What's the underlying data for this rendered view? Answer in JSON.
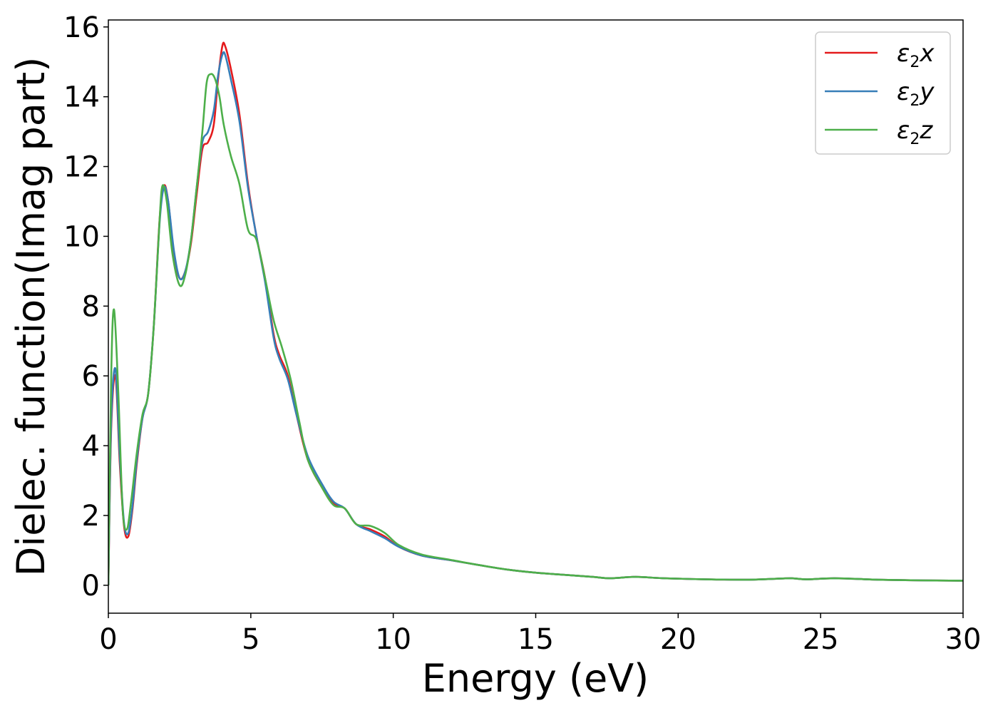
{
  "chart_data": {
    "type": "line",
    "title": "",
    "xlabel": "Energy (eV)",
    "ylabel": "Dielec. function(Imag part)",
    "xlim": [
      0,
      30
    ],
    "ylim": [
      -0.8,
      16.2
    ],
    "xticks": [
      0,
      5,
      10,
      15,
      20,
      25,
      30
    ],
    "yticks": [
      0,
      2,
      4,
      6,
      8,
      10,
      12,
      14,
      16
    ],
    "grid": false,
    "legend_position": "top-right",
    "series": [
      {
        "name": "ε2x",
        "legend": {
          "base": "ε",
          "sub": "2",
          "suffix": "x"
        },
        "color": "#e41a1c",
        "points": [
          [
            0,
            0
          ],
          [
            0.1,
            4.5
          ],
          [
            0.25,
            6.0
          ],
          [
            0.4,
            3.5
          ],
          [
            0.55,
            1.7
          ],
          [
            0.7,
            1.4
          ],
          [
            0.85,
            2.2
          ],
          [
            1.0,
            3.5
          ],
          [
            1.2,
            4.8
          ],
          [
            1.4,
            5.5
          ],
          [
            1.6,
            7.5
          ],
          [
            1.8,
            10.5
          ],
          [
            1.95,
            11.45
          ],
          [
            2.1,
            11.0
          ],
          [
            2.3,
            9.5
          ],
          [
            2.5,
            8.8
          ],
          [
            2.7,
            9.0
          ],
          [
            2.9,
            9.8
          ],
          [
            3.1,
            11.2
          ],
          [
            3.3,
            12.5
          ],
          [
            3.5,
            12.7
          ],
          [
            3.7,
            13.2
          ],
          [
            3.85,
            14.5
          ],
          [
            4.0,
            15.45
          ],
          [
            4.1,
            15.45
          ],
          [
            4.3,
            14.8
          ],
          [
            4.6,
            13.5
          ],
          [
            4.9,
            11.5
          ],
          [
            5.2,
            10.0
          ],
          [
            5.5,
            8.8
          ],
          [
            5.8,
            7.2
          ],
          [
            6.0,
            6.6
          ],
          [
            6.3,
            6.0
          ],
          [
            6.6,
            4.9
          ],
          [
            7.0,
            3.6
          ],
          [
            7.5,
            2.8
          ],
          [
            7.9,
            2.35
          ],
          [
            8.3,
            2.2
          ],
          [
            8.7,
            1.75
          ],
          [
            9.2,
            1.6
          ],
          [
            9.7,
            1.4
          ],
          [
            10.2,
            1.1
          ],
          [
            11.0,
            0.85
          ],
          [
            12.0,
            0.72
          ],
          [
            13.0,
            0.58
          ],
          [
            14.0,
            0.45
          ],
          [
            15.0,
            0.36
          ],
          [
            16.0,
            0.3
          ],
          [
            17.0,
            0.24
          ],
          [
            17.6,
            0.2
          ],
          [
            18.5,
            0.24
          ],
          [
            19.5,
            0.2
          ],
          [
            21.0,
            0.17
          ],
          [
            22.5,
            0.16
          ],
          [
            23.5,
            0.19
          ],
          [
            24.0,
            0.2
          ],
          [
            24.5,
            0.17
          ],
          [
            25.5,
            0.2
          ],
          [
            27.0,
            0.16
          ],
          [
            28.5,
            0.14
          ],
          [
            30.0,
            0.13
          ]
        ]
      },
      {
        "name": "ε2y",
        "legend": {
          "base": "ε",
          "sub": "2",
          "suffix": "y"
        },
        "color": "#377eb8",
        "points": [
          [
            0,
            0
          ],
          [
            0.1,
            4.7
          ],
          [
            0.25,
            6.2
          ],
          [
            0.4,
            3.7
          ],
          [
            0.55,
            1.8
          ],
          [
            0.7,
            1.5
          ],
          [
            0.85,
            2.3
          ],
          [
            1.0,
            3.6
          ],
          [
            1.2,
            4.8
          ],
          [
            1.4,
            5.5
          ],
          [
            1.6,
            7.5
          ],
          [
            1.8,
            10.4
          ],
          [
            1.95,
            11.4
          ],
          [
            2.1,
            11.0
          ],
          [
            2.3,
            9.6
          ],
          [
            2.5,
            8.8
          ],
          [
            2.7,
            9.0
          ],
          [
            2.9,
            9.9
          ],
          [
            3.1,
            11.4
          ],
          [
            3.3,
            12.7
          ],
          [
            3.5,
            13.0
          ],
          [
            3.7,
            13.6
          ],
          [
            3.85,
            14.6
          ],
          [
            4.0,
            15.2
          ],
          [
            4.1,
            15.2
          ],
          [
            4.3,
            14.5
          ],
          [
            4.6,
            13.3
          ],
          [
            4.9,
            11.4
          ],
          [
            5.2,
            10.0
          ],
          [
            5.5,
            8.7
          ],
          [
            5.8,
            7.1
          ],
          [
            6.0,
            6.5
          ],
          [
            6.3,
            5.9
          ],
          [
            6.6,
            4.9
          ],
          [
            7.0,
            3.7
          ],
          [
            7.5,
            2.9
          ],
          [
            7.9,
            2.4
          ],
          [
            8.3,
            2.2
          ],
          [
            8.7,
            1.75
          ],
          [
            9.2,
            1.55
          ],
          [
            9.7,
            1.35
          ],
          [
            10.2,
            1.1
          ],
          [
            11.0,
            0.85
          ],
          [
            12.0,
            0.72
          ],
          [
            13.0,
            0.58
          ],
          [
            14.0,
            0.45
          ],
          [
            15.0,
            0.36
          ],
          [
            16.0,
            0.3
          ],
          [
            17.0,
            0.24
          ],
          [
            17.6,
            0.2
          ],
          [
            18.5,
            0.24
          ],
          [
            19.5,
            0.2
          ],
          [
            21.0,
            0.17
          ],
          [
            22.5,
            0.16
          ],
          [
            23.5,
            0.19
          ],
          [
            24.0,
            0.2
          ],
          [
            24.5,
            0.17
          ],
          [
            25.5,
            0.2
          ],
          [
            27.0,
            0.16
          ],
          [
            28.5,
            0.14
          ],
          [
            30.0,
            0.13
          ]
        ]
      },
      {
        "name": "ε2z",
        "legend": {
          "base": "ε",
          "sub": "2",
          "suffix": "z"
        },
        "color": "#4daf4a",
        "points": [
          [
            0,
            0
          ],
          [
            0.1,
            6.0
          ],
          [
            0.2,
            7.9
          ],
          [
            0.35,
            5.5
          ],
          [
            0.5,
            2.2
          ],
          [
            0.65,
            1.6
          ],
          [
            0.8,
            2.4
          ],
          [
            1.0,
            3.8
          ],
          [
            1.2,
            4.9
          ],
          [
            1.4,
            5.5
          ],
          [
            1.6,
            7.5
          ],
          [
            1.8,
            10.5
          ],
          [
            1.9,
            11.45
          ],
          [
            2.05,
            11.0
          ],
          [
            2.25,
            9.5
          ],
          [
            2.5,
            8.6
          ],
          [
            2.7,
            8.9
          ],
          [
            2.9,
            9.9
          ],
          [
            3.1,
            11.4
          ],
          [
            3.3,
            13.0
          ],
          [
            3.45,
            14.4
          ],
          [
            3.6,
            14.65
          ],
          [
            3.75,
            14.5
          ],
          [
            3.9,
            14.0
          ],
          [
            4.05,
            13.2
          ],
          [
            4.3,
            12.3
          ],
          [
            4.6,
            11.5
          ],
          [
            4.9,
            10.2
          ],
          [
            5.2,
            9.9
          ],
          [
            5.5,
            8.8
          ],
          [
            5.8,
            7.6
          ],
          [
            6.1,
            6.8
          ],
          [
            6.4,
            5.9
          ],
          [
            6.7,
            4.7
          ],
          [
            7.0,
            3.6
          ],
          [
            7.5,
            2.8
          ],
          [
            7.9,
            2.3
          ],
          [
            8.3,
            2.2
          ],
          [
            8.7,
            1.75
          ],
          [
            9.2,
            1.7
          ],
          [
            9.7,
            1.5
          ],
          [
            10.2,
            1.15
          ],
          [
            11.0,
            0.88
          ],
          [
            12.0,
            0.73
          ],
          [
            13.0,
            0.58
          ],
          [
            14.0,
            0.45
          ],
          [
            15.0,
            0.36
          ],
          [
            16.0,
            0.3
          ],
          [
            17.0,
            0.24
          ],
          [
            17.6,
            0.2
          ],
          [
            18.5,
            0.24
          ],
          [
            19.5,
            0.2
          ],
          [
            21.0,
            0.17
          ],
          [
            22.5,
            0.16
          ],
          [
            23.5,
            0.19
          ],
          [
            24.0,
            0.2
          ],
          [
            24.5,
            0.17
          ],
          [
            25.5,
            0.2
          ],
          [
            27.0,
            0.16
          ],
          [
            28.5,
            0.14
          ],
          [
            30.0,
            0.13
          ]
        ]
      }
    ]
  }
}
